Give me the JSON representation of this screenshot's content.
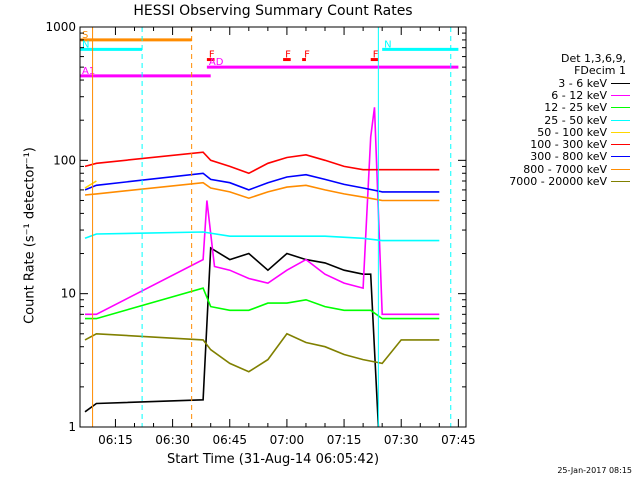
{
  "chart_data": {
    "type": "line",
    "title": "HESSI Observing Summary Count Rates",
    "xlabel": "Start Time (31-Aug-14 06:05:42)",
    "ylabel": "Count Rate (s⁻¹ detector⁻¹)",
    "yscale": "log",
    "ylim": [
      1,
      1000
    ],
    "xlim": [
      "06:05:42",
      "07:47:00"
    ],
    "x_ticks": [
      "06:15",
      "06:30",
      "06:45",
      "07:00",
      "07:15",
      "07:30",
      "07:45"
    ],
    "y_ticks": [
      "1",
      "10",
      "100",
      "1000"
    ],
    "legend_header": [
      "Det 1,3,6,9,",
      "FDecim 1"
    ],
    "legend_position": "right",
    "series": [
      {
        "name": "3 - 6 keV",
        "color": "#000000",
        "x": [
          "06:07",
          "06:10",
          "06:38",
          "06:40",
          "06:45",
          "06:50",
          "06:55",
          "07:00",
          "07:05",
          "07:10",
          "07:15",
          "07:20",
          "07:22",
          "07:24"
        ],
        "y": [
          1.3,
          1.5,
          1.6,
          22,
          18,
          20,
          15,
          20,
          18,
          17,
          15,
          14,
          14,
          1.0
        ]
      },
      {
        "name": "6 - 12 keV",
        "color": "#ff00ff",
        "x": [
          "06:07",
          "06:10",
          "06:38",
          "06:39",
          "06:41",
          "06:45",
          "06:50",
          "06:55",
          "07:00",
          "07:05",
          "07:10",
          "07:15",
          "07:20",
          "07:22",
          "07:23",
          "07:25",
          "07:30",
          "07:40"
        ],
        "y": [
          7,
          7,
          18,
          50,
          16,
          15,
          13,
          12,
          15,
          18,
          14,
          12,
          11,
          150,
          250,
          7,
          7,
          7
        ]
      },
      {
        "name": "12 - 25 keV",
        "color": "#00ff00",
        "x": [
          "06:07",
          "06:10",
          "06:38",
          "06:40",
          "06:45",
          "06:50",
          "06:55",
          "07:00",
          "07:05",
          "07:10",
          "07:15",
          "07:20",
          "07:22",
          "07:25",
          "07:30",
          "07:40"
        ],
        "y": [
          6.5,
          6.5,
          11,
          8,
          7.5,
          7.5,
          8.5,
          8.5,
          9,
          8,
          7.5,
          7.5,
          7.5,
          6.5,
          6.5,
          6.5
        ]
      },
      {
        "name": "25 - 50 keV",
        "color": "#00ffff",
        "x": [
          "06:07",
          "06:10",
          "06:38",
          "06:45",
          "06:50",
          "07:00",
          "07:10",
          "07:20",
          "07:25",
          "07:30",
          "07:40"
        ],
        "y": [
          26,
          28,
          29,
          27,
          27,
          27,
          27,
          26,
          25,
          25,
          25
        ]
      },
      {
        "name": "50 - 100 keV",
        "color": "#ffd700",
        "x": [
          "06:07",
          "06:10"
        ],
        "y": [
          62,
          70
        ]
      },
      {
        "name": "100 - 300 keV",
        "color": "#ff0000",
        "x": [
          "06:07",
          "06:10",
          "06:38",
          "06:40",
          "06:45",
          "06:50",
          "06:55",
          "07:00",
          "07:05",
          "07:10",
          "07:15",
          "07:20",
          "07:25",
          "07:30",
          "07:40"
        ],
        "y": [
          90,
          95,
          115,
          100,
          90,
          80,
          95,
          105,
          110,
          100,
          90,
          85,
          85,
          85,
          85
        ]
      },
      {
        "name": "300 - 800 keV",
        "color": "#0000ff",
        "x": [
          "06:07",
          "06:10",
          "06:38",
          "06:40",
          "06:45",
          "06:50",
          "06:55",
          "07:00",
          "07:05",
          "07:10",
          "07:15",
          "07:20",
          "07:25",
          "07:30",
          "07:40"
        ],
        "y": [
          60,
          65,
          80,
          72,
          68,
          60,
          68,
          75,
          78,
          72,
          66,
          62,
          58,
          58,
          58
        ]
      },
      {
        "name": "800 - 7000 keV",
        "color": "#ff8c00",
        "x": [
          "06:07",
          "06:10",
          "06:38",
          "06:40",
          "06:45",
          "06:50",
          "06:55",
          "07:00",
          "07:05",
          "07:10",
          "07:15",
          "07:20",
          "07:25",
          "07:30",
          "07:40"
        ],
        "y": [
          55,
          56,
          68,
          62,
          58,
          52,
          58,
          63,
          65,
          60,
          56,
          53,
          50,
          50,
          50
        ]
      },
      {
        "name": "7000 - 20000 keV",
        "color": "#808000",
        "x": [
          "06:07",
          "06:10",
          "06:38",
          "06:40",
          "06:45",
          "06:50",
          "06:55",
          "07:00",
          "07:05",
          "07:10",
          "07:15",
          "07:20",
          "07:25",
          "07:30",
          "07:40"
        ],
        "y": [
          4.5,
          5,
          4.5,
          3.8,
          3,
          2.6,
          3.2,
          5,
          4.3,
          4,
          3.5,
          3.2,
          3,
          4.5,
          4.5
        ]
      }
    ],
    "annotations": [
      {
        "label": "S",
        "color": "#ff8c00",
        "y": 800,
        "x": [
          "06:05:42",
          "06:35"
        ]
      },
      {
        "label": "N",
        "color": "#00ffff",
        "y": 680,
        "x": [
          "06:05:42",
          "06:22"
        ]
      },
      {
        "label": "N",
        "color": "#00ffff",
        "y": 680,
        "x": [
          "07:25",
          "07:45"
        ]
      },
      {
        "label": "F",
        "color": "#ff0000",
        "y": 570,
        "x": [
          "06:39",
          "06:41"
        ]
      },
      {
        "label": "F",
        "color": "#ff0000",
        "y": 570,
        "x": [
          "06:59",
          "07:01"
        ]
      },
      {
        "label": "F",
        "color": "#ff0000",
        "y": 570,
        "x": [
          "07:04",
          "07:05"
        ]
      },
      {
        "label": "F",
        "color": "#ff0000",
        "y": 570,
        "x": [
          "07:22",
          "07:24"
        ]
      },
      {
        "label": "AD",
        "color": "#ff00ff",
        "y": 500,
        "x": [
          "06:39",
          "07:45"
        ]
      },
      {
        "label": "A1",
        "color": "#ff00ff",
        "y": 430,
        "x": [
          "06:05:42",
          "06:40"
        ]
      }
    ],
    "vertical_markers": [
      {
        "x": "06:09",
        "color": "#ff8c00",
        "style": "solid"
      },
      {
        "x": "06:22",
        "color": "#00ffff",
        "style": "dashed"
      },
      {
        "x": "06:35",
        "color": "#ff8c00",
        "style": "dashed"
      },
      {
        "x": "07:24",
        "color": "#00ffff",
        "style": "solid"
      },
      {
        "x": "07:43",
        "color": "#00ffff",
        "style": "dashed"
      }
    ]
  },
  "footer": "25-Jan-2017 08:15"
}
